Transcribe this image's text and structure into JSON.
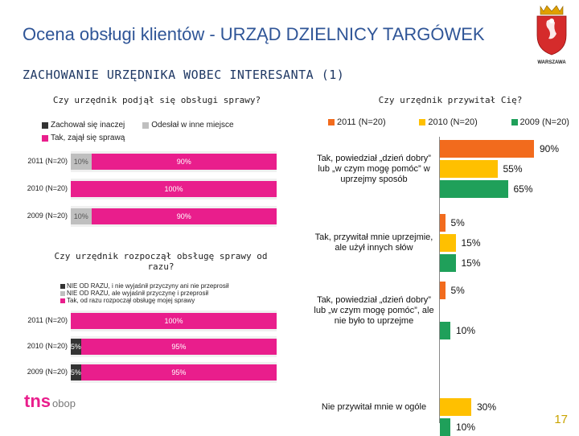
{
  "header": {
    "title": "Ocena obsługi klientów - URZĄD DZIELNICY TARGÓWEK",
    "subtitle": "ZACHOWANIE URZĘDNIKA WOBEC INTERESANTA (1)",
    "logo_caption": "WARSZAWA",
    "footer_logo_main": "tns",
    "footer_logo_sub": "obop",
    "page_number": "17"
  },
  "colors": {
    "magenta": "#e91e8c",
    "dark": "#333333",
    "gray": "#bfbfbf",
    "orange": "#f26b1d",
    "yellow": "#ffc000",
    "green": "#1fa05a",
    "title_blue": "#2f5597"
  },
  "chart_data": [
    {
      "type": "bar",
      "orientation": "horizontal-stacked",
      "title": "Czy urzędnik podjął się obsługi sprawy?",
      "categories": [
        "2011 (N=20)",
        "2010 (N=20)",
        "2009 (N=20)"
      ],
      "series": [
        {
          "name": "Zachował się inaczej",
          "color": "#333333",
          "values": [
            0,
            0,
            0
          ],
          "labels": [
            "",
            "",
            ""
          ]
        },
        {
          "name": "Odesłał w inne miejsce",
          "color": "#bfbfbf",
          "values": [
            10,
            0,
            10
          ],
          "labels": [
            "10%",
            "",
            "10%"
          ]
        },
        {
          "name": "Tak, zajął się sprawą",
          "color": "#e91e8c",
          "values": [
            90,
            100,
            90
          ],
          "labels": [
            "90%",
            "100%",
            "90%"
          ]
        }
      ],
      "xlim": [
        0,
        100
      ]
    },
    {
      "type": "bar",
      "orientation": "horizontal-stacked",
      "title": "Czy urzędnik rozpoczął obsługę sprawy od razu?",
      "categories": [
        "2011 (N=20)",
        "2010 (N=20)",
        "2009 (N=20)"
      ],
      "series": [
        {
          "name": "NIE OD RAZU, i nie wyjaśnił przyczyny ani nie przeprosił",
          "color": "#333333",
          "values": [
            0,
            5,
            5
          ],
          "labels": [
            "",
            "5%",
            "5%"
          ]
        },
        {
          "name": "NIE OD RAZU, ale wyjaśnił przyczynę i przeprosił",
          "color": "#bfbfbf",
          "values": [
            0,
            0,
            0
          ],
          "labels": [
            "",
            "",
            ""
          ]
        },
        {
          "name": "Tak, od razu rozpoczął obsługę mojej sprawy",
          "color": "#e91e8c",
          "values": [
            100,
            95,
            95
          ],
          "labels": [
            "100%",
            "95%",
            "95%"
          ]
        }
      ],
      "xlim": [
        0,
        100
      ]
    },
    {
      "type": "bar",
      "orientation": "horizontal-grouped",
      "title": "Czy urzędnik przywitał Cię?",
      "categories": [
        "Tak, powiedział „dzień dobry” lub „w czym mogę pomóc” w uprzejmy sposób",
        "Tak, przywitał mnie uprzejmie, ale użył innych słów",
        "Tak, powiedział „dzień dobry” lub „w czym mogę pomóc”, ale nie było to uprzejme",
        "Nie przywitał mnie w ogóle"
      ],
      "series": [
        {
          "name": "2011 (N=20)",
          "color": "#f26b1d",
          "values": [
            90,
            5,
            5,
            0
          ],
          "labels": [
            "90%",
            "5%",
            "5%",
            ""
          ]
        },
        {
          "name": "2010 (N=20)",
          "color": "#ffc000",
          "values": [
            55,
            15,
            0,
            30
          ],
          "labels": [
            "55%",
            "15%",
            "",
            "30%"
          ]
        },
        {
          "name": "2009 (N=20)",
          "color": "#1fa05a",
          "values": [
            65,
            15,
            10,
            10
          ],
          "labels": [
            "65%",
            "15%",
            "10%",
            "10%"
          ]
        }
      ],
      "xlim": [
        0,
        100
      ]
    }
  ]
}
